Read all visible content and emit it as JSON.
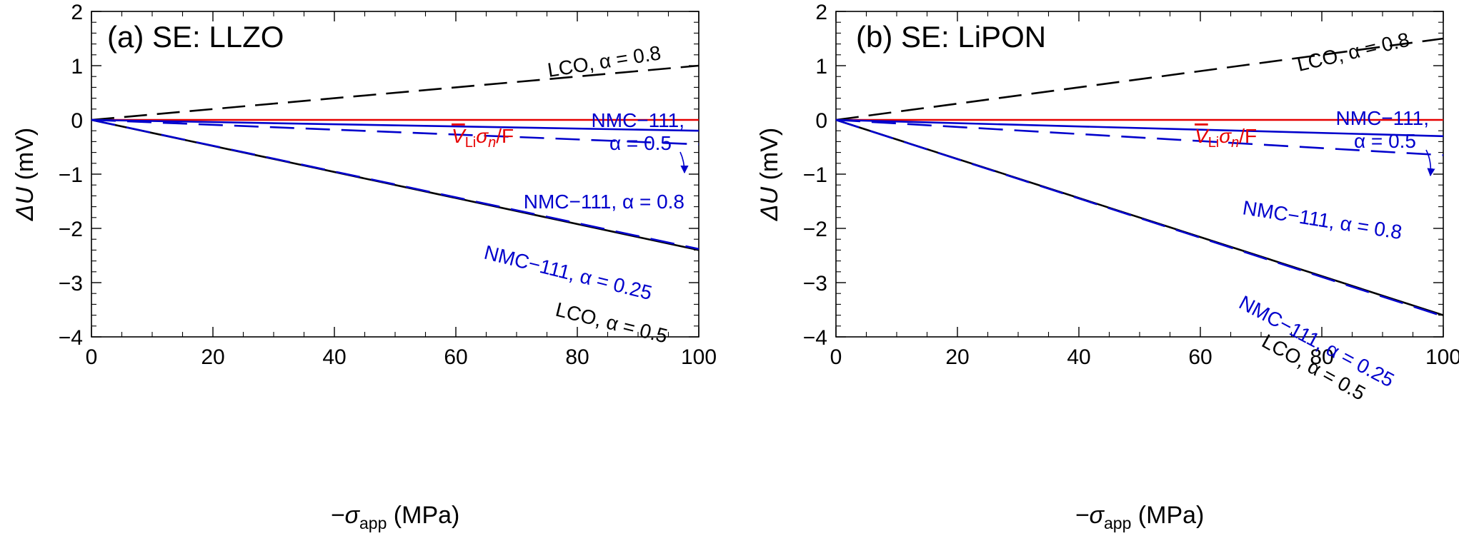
{
  "colors": {
    "black": "#000000",
    "blue": "#0000cc",
    "red": "#e60000"
  },
  "chart_data": [
    {
      "type": "line",
      "panel": "(a) SE: LLZO",
      "xlabel_main": "−σ",
      "xlabel_sub": "app",
      "xlabel_unit": " (MPa)",
      "ylabel_main": "ΔU",
      "ylabel_unit": " (mV)",
      "xlim": [
        0,
        100
      ],
      "ylim": [
        -4,
        2
      ],
      "x_ticks": [
        0,
        20,
        40,
        60,
        80,
        100
      ],
      "x_tick_labels": [
        "0",
        "20",
        "40",
        "60",
        "80",
        "100"
      ],
      "y_ticks": [
        2,
        1,
        0,
        -1,
        -2,
        -3,
        -4
      ],
      "y_tick_labels": [
        "2",
        "1",
        "0",
        "−1",
        "−2",
        "−3",
        "−4"
      ],
      "series": [
        {
          "name": "LCO, α = 0.8",
          "color": "#000000",
          "dash": "dashed",
          "x": [
            0,
            100
          ],
          "y": [
            0,
            1.0
          ]
        },
        {
          "name": "V̄Liσn/F",
          "color": "#e60000",
          "dash": "solid",
          "x": [
            0,
            100
          ],
          "y": [
            0,
            0
          ]
        },
        {
          "name": "NMC−111, α = 0.5",
          "color": "#0000cc",
          "dash": "solid",
          "x": [
            0,
            100
          ],
          "y": [
            0,
            -0.2
          ]
        },
        {
          "name": "NMC−111, α = 0.8",
          "color": "#0000cc",
          "dash": "dashed",
          "x": [
            0,
            100
          ],
          "y": [
            0,
            -0.45
          ]
        },
        {
          "name": "NMC−111, α = 0.25",
          "color": "#0000cc",
          "dash": "dashed",
          "x": [
            0,
            100
          ],
          "y": [
            0,
            -2.38
          ]
        },
        {
          "name": "LCO, α = 0.5",
          "color": "#000000",
          "dash": "solid",
          "x": [
            0,
            100
          ],
          "y": [
            0,
            -2.4
          ]
        }
      ],
      "annotations": {
        "lco08": "LCO, α = 0.8",
        "vli": {
          "v": "V",
          "sub": "Li",
          "sigma": "σ",
          "n": "n",
          "tail": "/F"
        },
        "nmc05_line1": "NMC−111,",
        "nmc05_line2": "α = 0.5",
        "nmc08": "NMC−111, α = 0.8",
        "nmc025": "NMC−111, α = 0.25",
        "lco05": "LCO, α = 0.5"
      }
    },
    {
      "type": "line",
      "panel": "(b) SE: LiPON",
      "xlabel_main": "−σ",
      "xlabel_sub": "app",
      "xlabel_unit": " (MPa)",
      "ylabel_main": "ΔU",
      "ylabel_unit": " (mV)",
      "xlim": [
        0,
        100
      ],
      "ylim": [
        -4,
        2
      ],
      "x_ticks": [
        0,
        20,
        40,
        60,
        80,
        100
      ],
      "x_tick_labels": [
        "0",
        "20",
        "40",
        "60",
        "80",
        "100"
      ],
      "y_ticks": [
        2,
        1,
        0,
        -1,
        -2,
        -3,
        -4
      ],
      "y_tick_labels": [
        "2",
        "1",
        "0",
        "−1",
        "−2",
        "−3",
        "−4"
      ],
      "series": [
        {
          "name": "LCO, α = 0.8",
          "color": "#000000",
          "dash": "dashed",
          "x": [
            0,
            100
          ],
          "y": [
            0,
            1.5
          ]
        },
        {
          "name": "V̄Liσn/F",
          "color": "#e60000",
          "dash": "solid",
          "x": [
            0,
            100
          ],
          "y": [
            0,
            0
          ]
        },
        {
          "name": "NMC−111, α = 0.5",
          "color": "#0000cc",
          "dash": "solid",
          "x": [
            0,
            100
          ],
          "y": [
            0,
            -0.3
          ]
        },
        {
          "name": "NMC−111, α = 0.8",
          "color": "#0000cc",
          "dash": "dashed",
          "x": [
            0,
            100
          ],
          "y": [
            0,
            -0.65
          ]
        },
        {
          "name": "NMC−111, α = 0.25",
          "color": "#0000cc",
          "dash": "dashed",
          "x": [
            0,
            100
          ],
          "y": [
            0,
            -3.62
          ]
        },
        {
          "name": "LCO, α = 0.5",
          "color": "#000000",
          "dash": "solid",
          "x": [
            0,
            100
          ],
          "y": [
            0,
            -3.6
          ]
        }
      ],
      "annotations": {
        "lco08": "LCO, α = 0.8",
        "vli": {
          "v": "V",
          "sub": "Li",
          "sigma": "σ",
          "n": "n",
          "tail": "/F"
        },
        "nmc05_line1": "NMC−111,",
        "nmc05_line2": "α = 0.5",
        "nmc08": "NMC−111, α = 0.8",
        "nmc025": "NMC−111, α = 0.25",
        "lco05": "LCO, α = 0.5"
      }
    }
  ]
}
